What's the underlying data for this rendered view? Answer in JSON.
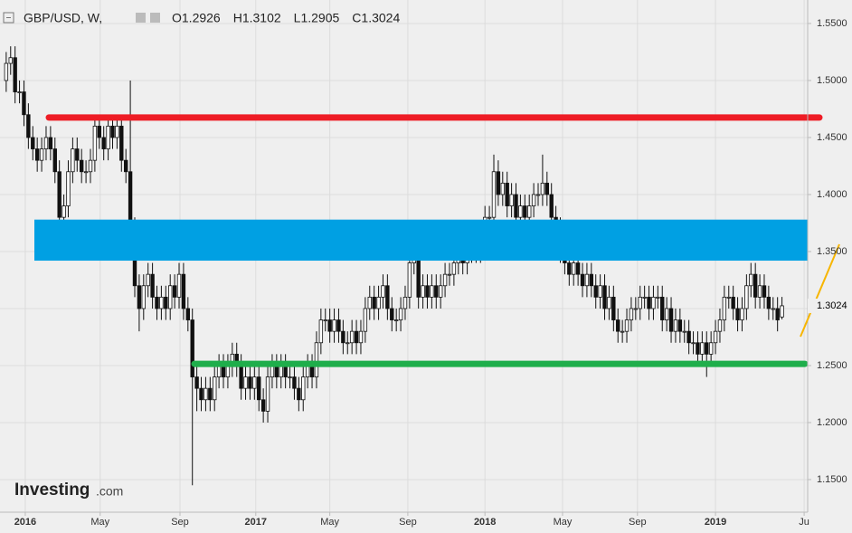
{
  "chart_data": {
    "type": "candlestick",
    "symbol": "GBP/USD, W,",
    "ohlc_labels": [
      "O",
      "H",
      "L",
      "C"
    ],
    "logo": [
      "Investing",
      ".com"
    ],
    "ylim": [
      1.1214,
      1.5706
    ],
    "yticks": [
      {
        "value": 1.15,
        "label": "1.1500"
      },
      {
        "value": 1.2,
        "label": "1.2000"
      },
      {
        "value": 1.25,
        "label": "1.2500"
      },
      {
        "value": 1.3,
        "label": "1.3000"
      },
      {
        "value": 1.35,
        "label": "1.3500"
      },
      {
        "value": 1.4,
        "label": "1.4000"
      },
      {
        "value": 1.45,
        "label": "1.4500"
      },
      {
        "value": 1.5,
        "label": "1.5000"
      },
      {
        "value": 1.55,
        "label": "1.5500"
      }
    ],
    "xlim": [
      -1.4,
      180.8
    ],
    "xticks": [
      {
        "value": 4.3,
        "label": "2016"
      },
      {
        "value": 21.2,
        "label": "May"
      },
      {
        "value": 39.2,
        "label": "Sep"
      },
      {
        "value": 56.3,
        "label": "2017"
      },
      {
        "value": 73,
        "label": "May"
      },
      {
        "value": 90.6,
        "label": "Sep"
      },
      {
        "value": 108,
        "label": "2018"
      },
      {
        "value": 125.5,
        "label": "May"
      },
      {
        "value": 142.4,
        "label": "Sep"
      },
      {
        "value": 160,
        "label": "2019"
      },
      {
        "value": 180,
        "label": "Ju"
      }
    ],
    "grid": true,
    "up_color": "#ffffff",
    "down_color": "#111111",
    "zones": [
      {
        "from": 1.342,
        "to": 1.378,
        "color": "#00a0e3"
      }
    ],
    "hlines": [
      {
        "value": 1.4675,
        "color": "#ee1c25"
      },
      {
        "value": 1.2515,
        "color": "#1fae4b"
      }
    ],
    "open": [
      1.5,
      1.515,
      1.52,
      1.49,
      1.49,
      1.47,
      1.45,
      1.44,
      1.43,
      1.44,
      1.45,
      1.44,
      1.42,
      1.38,
      1.39,
      1.42,
      1.44,
      1.43,
      1.42,
      1.42,
      1.43,
      1.46,
      1.45,
      1.44,
      1.46,
      1.45,
      1.46,
      1.43,
      1.42,
      1.37,
      1.32,
      1.3,
      1.32,
      1.33,
      1.31,
      1.3,
      1.31,
      1.3,
      1.32,
      1.31,
      1.33,
      1.3,
      1.29,
      1.24,
      1.23,
      1.22,
      1.23,
      1.22,
      1.24,
      1.25,
      1.24,
      1.25,
      1.26,
      1.25,
      1.23,
      1.24,
      1.23,
      1.24,
      1.22,
      1.21,
      1.24,
      1.25,
      1.24,
      1.25,
      1.24,
      1.24,
      1.23,
      1.22,
      1.24,
      1.25,
      1.24,
      1.27,
      1.29,
      1.29,
      1.28,
      1.29,
      1.28,
      1.27,
      1.27,
      1.28,
      1.27,
      1.28,
      1.3,
      1.31,
      1.3,
      1.31,
      1.32,
      1.3,
      1.29,
      1.29,
      1.3,
      1.31,
      1.34,
      1.35,
      1.31,
      1.32,
      1.31,
      1.32,
      1.31,
      1.32,
      1.33,
      1.33,
      1.34,
      1.35,
      1.34,
      1.35,
      1.35,
      1.35,
      1.36,
      1.38,
      1.38,
      1.42,
      1.4,
      1.41,
      1.39,
      1.4,
      1.38,
      1.39,
      1.38,
      1.39,
      1.4,
      1.4,
      1.41,
      1.4,
      1.38,
      1.37,
      1.35,
      1.34,
      1.33,
      1.34,
      1.33,
      1.32,
      1.33,
      1.32,
      1.31,
      1.32,
      1.3,
      1.31,
      1.29,
      1.28,
      1.28,
      1.29,
      1.3,
      1.3,
      1.31,
      1.31,
      1.3,
      1.31,
      1.31,
      1.29,
      1.3,
      1.28,
      1.29,
      1.28,
      1.28,
      1.27,
      1.27,
      1.26,
      1.27,
      1.26,
      1.27,
      1.28,
      1.29,
      1.31,
      1.31,
      1.3,
      1.29,
      1.3,
      1.32,
      1.33,
      1.31,
      1.32,
      1.31,
      1.3,
      1.3,
      1.2926
    ],
    "high": [
      1.525,
      1.53,
      1.53,
      1.5,
      1.5,
      1.48,
      1.46,
      1.45,
      1.45,
      1.46,
      1.46,
      1.45,
      1.43,
      1.4,
      1.43,
      1.45,
      1.45,
      1.44,
      1.43,
      1.44,
      1.47,
      1.47,
      1.46,
      1.47,
      1.47,
      1.47,
      1.47,
      1.44,
      1.5,
      1.38,
      1.33,
      1.33,
      1.34,
      1.34,
      1.32,
      1.32,
      1.32,
      1.33,
      1.33,
      1.34,
      1.34,
      1.31,
      1.3,
      1.25,
      1.24,
      1.24,
      1.24,
      1.25,
      1.26,
      1.26,
      1.26,
      1.27,
      1.27,
      1.26,
      1.25,
      1.25,
      1.25,
      1.25,
      1.23,
      1.25,
      1.26,
      1.26,
      1.26,
      1.26,
      1.25,
      1.25,
      1.24,
      1.25,
      1.26,
      1.26,
      1.28,
      1.3,
      1.3,
      1.3,
      1.3,
      1.3,
      1.29,
      1.28,
      1.29,
      1.29,
      1.29,
      1.31,
      1.32,
      1.32,
      1.32,
      1.33,
      1.33,
      1.31,
      1.3,
      1.31,
      1.32,
      1.35,
      1.36,
      1.36,
      1.33,
      1.33,
      1.33,
      1.33,
      1.33,
      1.34,
      1.34,
      1.35,
      1.36,
      1.36,
      1.36,
      1.36,
      1.36,
      1.37,
      1.39,
      1.39,
      1.435,
      1.43,
      1.42,
      1.42,
      1.41,
      1.41,
      1.4,
      1.4,
      1.4,
      1.41,
      1.41,
      1.435,
      1.42,
      1.41,
      1.39,
      1.38,
      1.36,
      1.35,
      1.35,
      1.35,
      1.34,
      1.34,
      1.34,
      1.33,
      1.33,
      1.33,
      1.32,
      1.32,
      1.3,
      1.29,
      1.3,
      1.31,
      1.31,
      1.32,
      1.32,
      1.32,
      1.32,
      1.32,
      1.32,
      1.31,
      1.31,
      1.3,
      1.3,
      1.29,
      1.29,
      1.28,
      1.28,
      1.28,
      1.28,
      1.28,
      1.29,
      1.3,
      1.32,
      1.32,
      1.32,
      1.31,
      1.31,
      1.33,
      1.34,
      1.34,
      1.33,
      1.33,
      1.32,
      1.31,
      1.31,
      1.3102
    ],
    "low": [
      1.49,
      1.505,
      1.48,
      1.48,
      1.46,
      1.44,
      1.43,
      1.42,
      1.42,
      1.43,
      1.43,
      1.41,
      1.37,
      1.37,
      1.38,
      1.41,
      1.42,
      1.41,
      1.41,
      1.41,
      1.42,
      1.44,
      1.43,
      1.43,
      1.44,
      1.44,
      1.42,
      1.41,
      1.36,
      1.31,
      1.28,
      1.29,
      1.31,
      1.3,
      1.29,
      1.29,
      1.29,
      1.29,
      1.3,
      1.3,
      1.29,
      1.28,
      1.145,
      1.21,
      1.21,
      1.21,
      1.21,
      1.21,
      1.23,
      1.23,
      1.23,
      1.24,
      1.24,
      1.22,
      1.22,
      1.22,
      1.22,
      1.21,
      1.2,
      1.2,
      1.23,
      1.23,
      1.23,
      1.23,
      1.23,
      1.22,
      1.21,
      1.21,
      1.23,
      1.23,
      1.23,
      1.26,
      1.28,
      1.27,
      1.27,
      1.27,
      1.26,
      1.26,
      1.26,
      1.26,
      1.26,
      1.27,
      1.29,
      1.29,
      1.29,
      1.3,
      1.29,
      1.28,
      1.28,
      1.28,
      1.29,
      1.3,
      1.33,
      1.3,
      1.3,
      1.3,
      1.3,
      1.3,
      1.3,
      1.31,
      1.32,
      1.32,
      1.33,
      1.33,
      1.33,
      1.34,
      1.34,
      1.34,
      1.35,
      1.37,
      1.37,
      1.39,
      1.39,
      1.38,
      1.38,
      1.37,
      1.37,
      1.37,
      1.37,
      1.38,
      1.39,
      1.39,
      1.39,
      1.37,
      1.36,
      1.34,
      1.33,
      1.32,
      1.32,
      1.32,
      1.31,
      1.31,
      1.31,
      1.3,
      1.3,
      1.29,
      1.29,
      1.28,
      1.27,
      1.27,
      1.27,
      1.28,
      1.29,
      1.29,
      1.3,
      1.29,
      1.29,
      1.3,
      1.28,
      1.28,
      1.27,
      1.27,
      1.27,
      1.27,
      1.26,
      1.26,
      1.25,
      1.25,
      1.24,
      1.25,
      1.26,
      1.27,
      1.28,
      1.3,
      1.29,
      1.28,
      1.28,
      1.29,
      1.31,
      1.3,
      1.3,
      1.3,
      1.29,
      1.29,
      1.28,
      1.2905
    ],
    "close": [
      1.515,
      1.52,
      1.49,
      1.49,
      1.47,
      1.45,
      1.44,
      1.43,
      1.44,
      1.45,
      1.44,
      1.42,
      1.38,
      1.39,
      1.42,
      1.44,
      1.43,
      1.42,
      1.42,
      1.43,
      1.46,
      1.45,
      1.44,
      1.46,
      1.45,
      1.46,
      1.43,
      1.42,
      1.37,
      1.32,
      1.3,
      1.32,
      1.33,
      1.31,
      1.3,
      1.31,
      1.3,
      1.32,
      1.31,
      1.33,
      1.3,
      1.29,
      1.24,
      1.23,
      1.22,
      1.23,
      1.22,
      1.24,
      1.25,
      1.24,
      1.25,
      1.26,
      1.25,
      1.23,
      1.24,
      1.23,
      1.24,
      1.22,
      1.21,
      1.24,
      1.25,
      1.24,
      1.25,
      1.24,
      1.24,
      1.23,
      1.22,
      1.24,
      1.25,
      1.24,
      1.27,
      1.29,
      1.29,
      1.28,
      1.29,
      1.28,
      1.27,
      1.27,
      1.28,
      1.27,
      1.28,
      1.3,
      1.31,
      1.3,
      1.31,
      1.32,
      1.3,
      1.29,
      1.29,
      1.3,
      1.31,
      1.34,
      1.35,
      1.31,
      1.32,
      1.31,
      1.32,
      1.31,
      1.32,
      1.33,
      1.33,
      1.34,
      1.35,
      1.34,
      1.35,
      1.35,
      1.35,
      1.36,
      1.38,
      1.38,
      1.42,
      1.4,
      1.41,
      1.39,
      1.4,
      1.38,
      1.39,
      1.38,
      1.39,
      1.4,
      1.4,
      1.41,
      1.4,
      1.38,
      1.37,
      1.35,
      1.34,
      1.33,
      1.34,
      1.33,
      1.32,
      1.33,
      1.32,
      1.31,
      1.32,
      1.3,
      1.31,
      1.29,
      1.28,
      1.28,
      1.29,
      1.3,
      1.3,
      1.31,
      1.31,
      1.3,
      1.31,
      1.31,
      1.29,
      1.3,
      1.28,
      1.29,
      1.28,
      1.28,
      1.27,
      1.27,
      1.26,
      1.27,
      1.26,
      1.27,
      1.28,
      1.29,
      1.31,
      1.31,
      1.3,
      1.29,
      1.3,
      1.32,
      1.33,
      1.31,
      1.32,
      1.31,
      1.3,
      1.3,
      1.29,
      1.3024
    ]
  }
}
